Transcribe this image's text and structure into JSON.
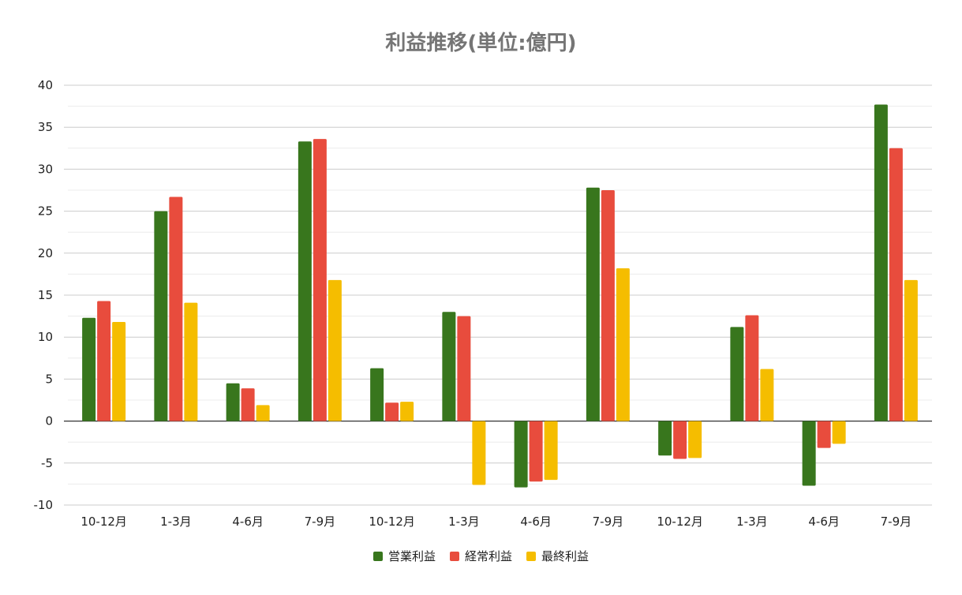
{
  "chart_data": {
    "type": "bar",
    "title": "利益推移(単位:億円)",
    "categories": [
      "10-12月",
      "1-3月",
      "4-6月",
      "7-9月",
      "10-12月",
      "1-3月",
      "4-6月",
      "7-9月",
      "10-12月",
      "1-3月",
      "4-6月",
      "7-9月"
    ],
    "series": [
      {
        "name": "営業利益",
        "color": "#38761d",
        "values": [
          12.3,
          25.0,
          4.5,
          33.3,
          6.3,
          13.0,
          -7.9,
          27.8,
          -4.1,
          11.2,
          -7.7,
          37.7
        ]
      },
      {
        "name": "経常利益",
        "color": "#e84c3d",
        "values": [
          14.3,
          26.7,
          3.9,
          33.6,
          2.2,
          12.5,
          -7.2,
          27.5,
          -4.5,
          12.6,
          -3.2,
          32.5
        ]
      },
      {
        "name": "最終利益",
        "color": "#f5bd00",
        "values": [
          11.8,
          14.1,
          1.9,
          16.8,
          2.3,
          -7.6,
          -7.0,
          18.2,
          -4.4,
          6.2,
          -2.7,
          16.8
        ]
      }
    ],
    "ylim": [
      -10,
      40
    ],
    "yticks": [
      "40",
      "35",
      "30",
      "25",
      "20",
      "15",
      "10",
      "5",
      "0",
      "-5",
      "-10"
    ],
    "xlabel": "",
    "ylabel": "",
    "grid": true,
    "legend_position": "bottom"
  }
}
